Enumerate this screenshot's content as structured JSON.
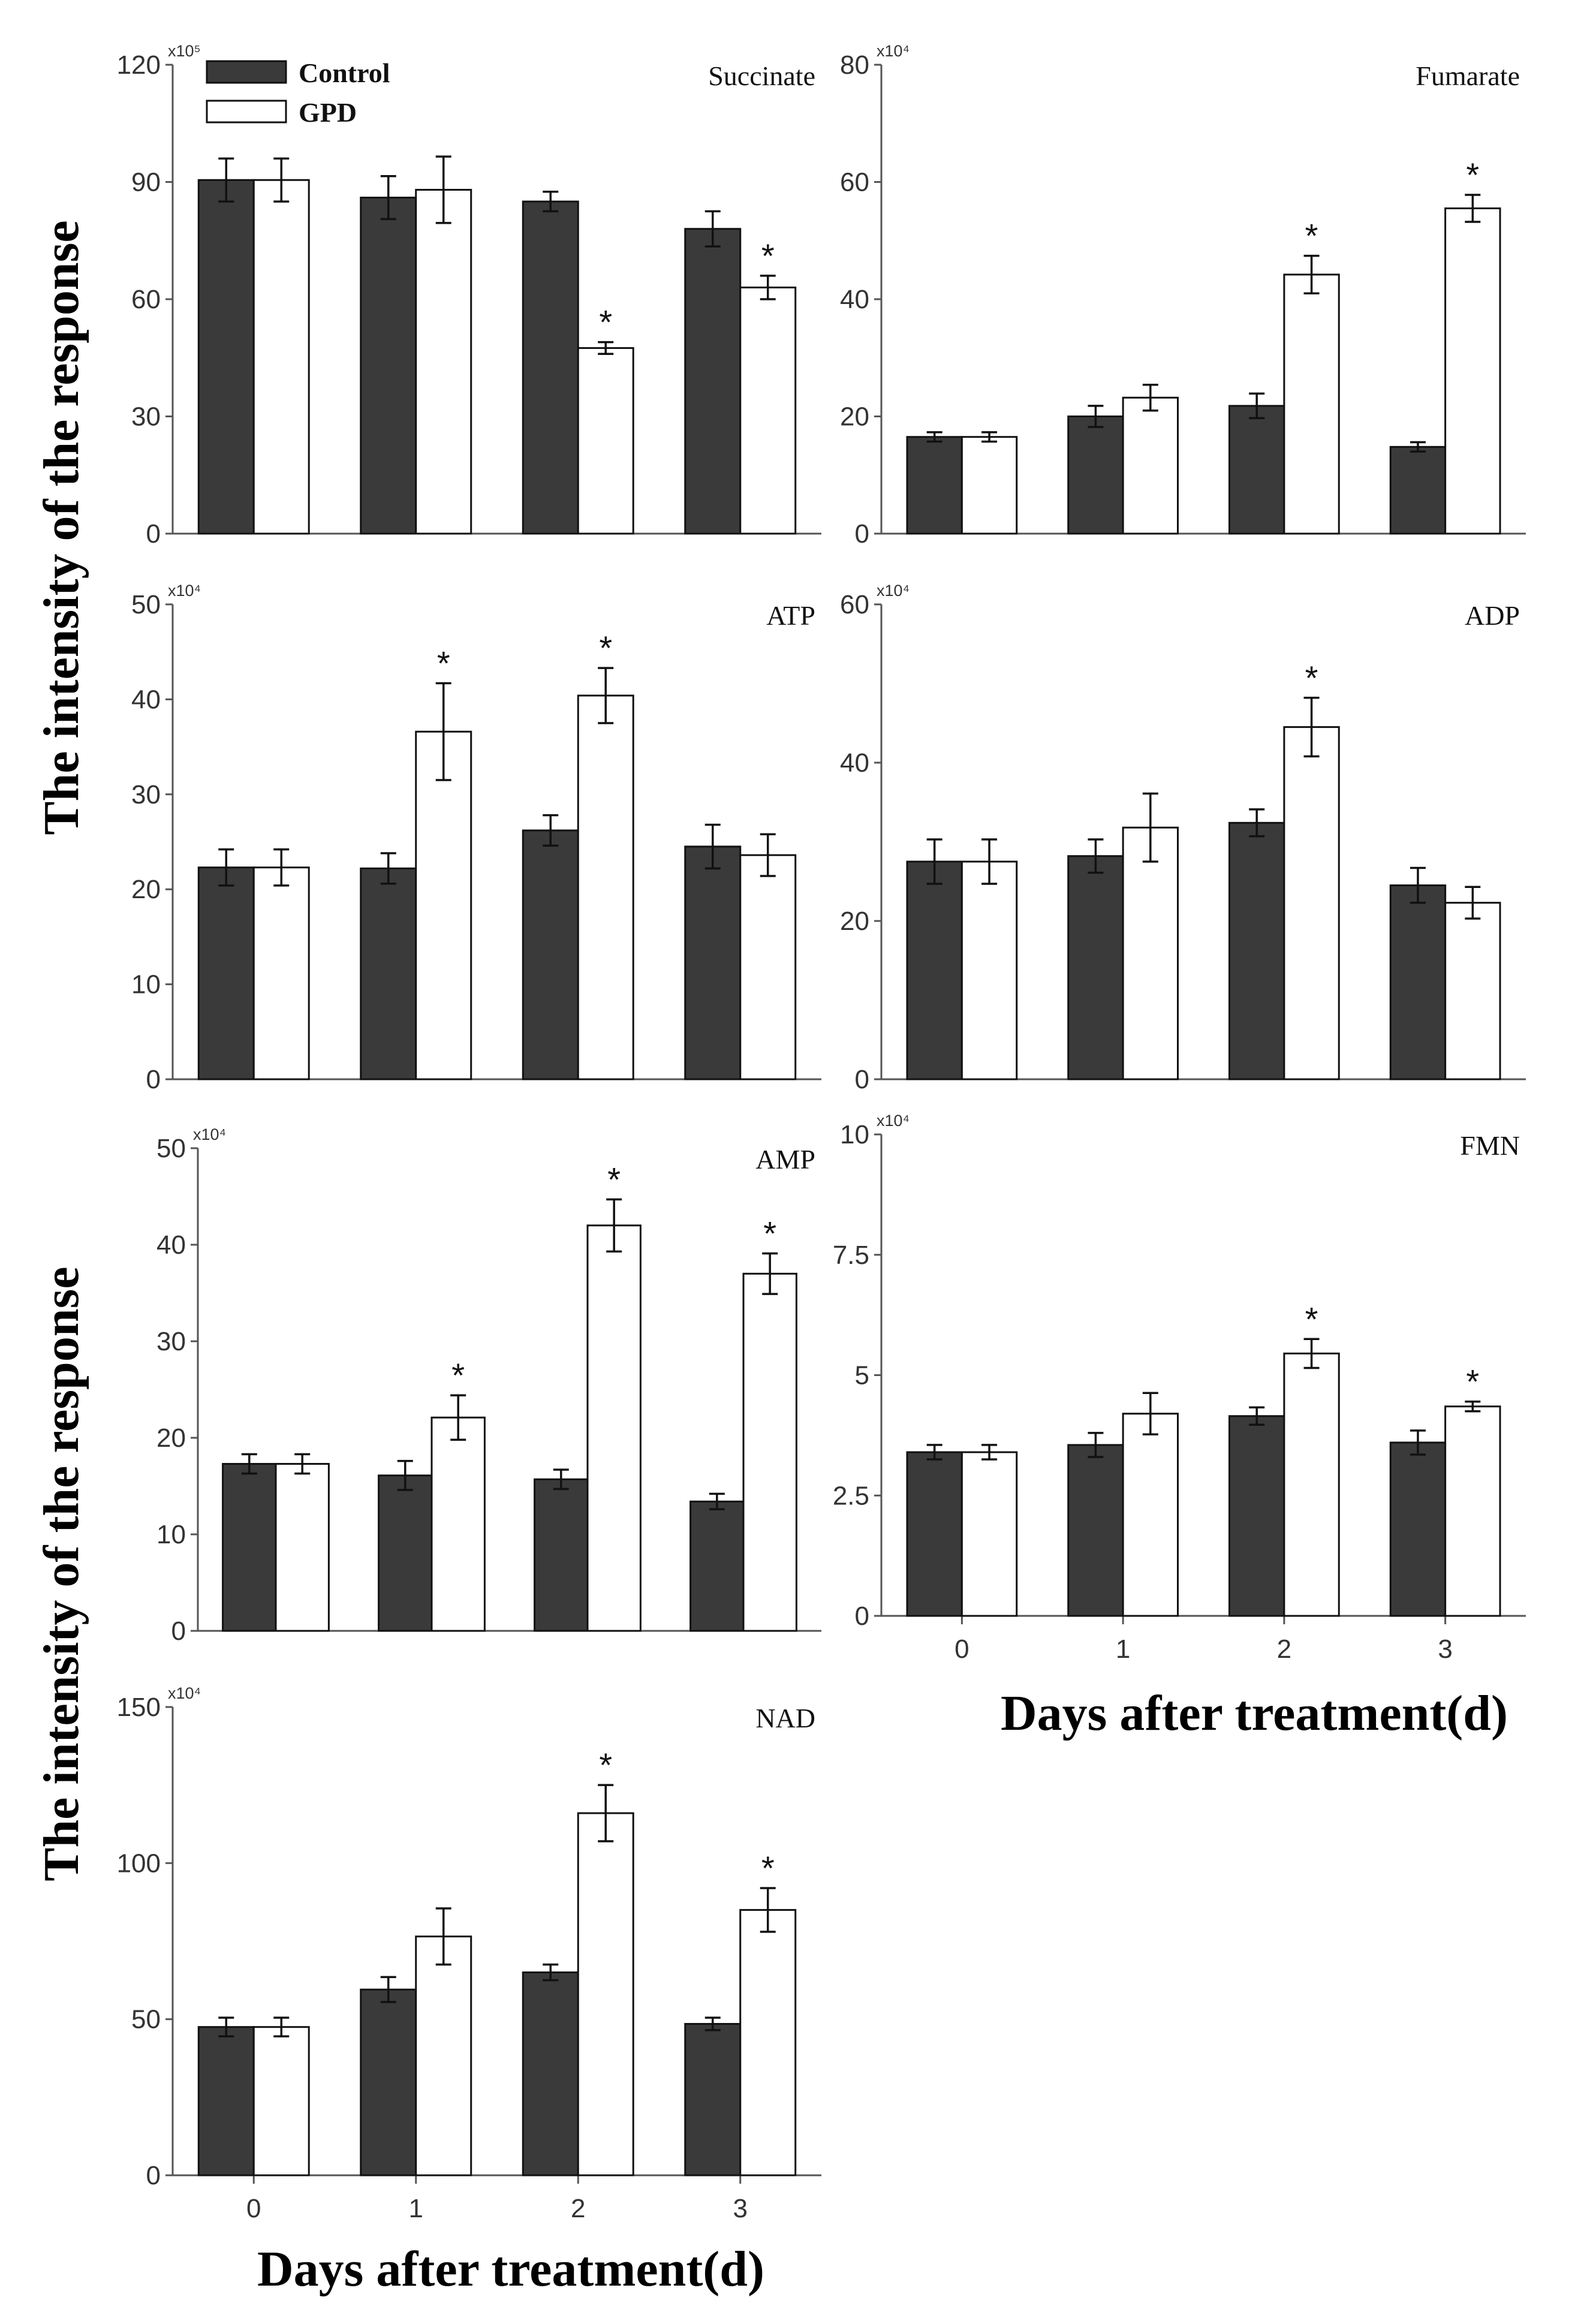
{
  "colors": {
    "control": "#3a3a3a",
    "gpd": "#ffffff",
    "axis": "#555555",
    "edge": "#111111"
  },
  "legend": {
    "placement": "top-left",
    "control_label": "Control",
    "gpd_label": "GPD"
  },
  "axis_titles": {
    "ylabel": "The intensity of the response",
    "xlabel": "Days after treatment(d)"
  },
  "chart_data": [
    {
      "type": "bar",
      "title": "Succinate",
      "exponent": "x10⁵",
      "xlabel": "Days after treatment(d)",
      "ylabel": "The intensity of the response",
      "categories": [
        "0",
        "1",
        "2",
        "3"
      ],
      "ylim": [
        0,
        120
      ],
      "yticks": [
        0,
        30,
        60,
        90,
        120
      ],
      "ytick_labels": [
        "0",
        "30",
        "60",
        "90",
        "120"
      ],
      "show_xticks": false,
      "series": [
        {
          "name": "Control",
          "values": [
            90.5,
            86,
            85,
            78
          ],
          "errors": [
            5.5,
            5.5,
            2.5,
            4.5
          ],
          "sig": [
            false,
            false,
            false,
            false
          ]
        },
        {
          "name": "GPD",
          "values": [
            90.5,
            88,
            47.5,
            63
          ],
          "errors": [
            5.5,
            8.5,
            1.5,
            3
          ],
          "sig": [
            false,
            false,
            true,
            true
          ]
        }
      ]
    },
    {
      "type": "bar",
      "title": "Fumarate",
      "exponent": "x10⁴",
      "xlabel": "Days after treatment(d)",
      "ylabel": "The intensity of the response",
      "categories": [
        "0",
        "1",
        "2",
        "3"
      ],
      "ylim": [
        0,
        80
      ],
      "yticks": [
        0,
        20,
        40,
        60,
        80
      ],
      "ytick_labels": [
        "0",
        "20",
        "40",
        "60",
        "80"
      ],
      "show_xticks": false,
      "series": [
        {
          "name": "Control",
          "values": [
            16.5,
            20,
            21.8,
            14.8
          ],
          "errors": [
            0.8,
            1.8,
            2.1,
            0.8
          ],
          "sig": [
            false,
            false,
            false,
            false
          ]
        },
        {
          "name": "GPD",
          "values": [
            16.5,
            23.2,
            44.2,
            55.5
          ],
          "errors": [
            0.8,
            2.2,
            3.2,
            2.3
          ],
          "sig": [
            false,
            false,
            true,
            true
          ]
        }
      ]
    },
    {
      "type": "bar",
      "title": "ATP",
      "exponent": "x10⁴",
      "xlabel": "Days after treatment(d)",
      "ylabel": "The intensity of the response",
      "categories": [
        "0",
        "1",
        "2",
        "3"
      ],
      "ylim": [
        0,
        50
      ],
      "yticks": [
        0,
        10,
        20,
        30,
        40,
        50
      ],
      "ytick_labels": [
        "0",
        "10",
        "20",
        "30",
        "40",
        "50"
      ],
      "show_xticks": false,
      "series": [
        {
          "name": "Control",
          "values": [
            22.3,
            22.2,
            26.2,
            24.5
          ],
          "errors": [
            1.9,
            1.6,
            1.6,
            2.3
          ],
          "sig": [
            false,
            false,
            false,
            false
          ]
        },
        {
          "name": "GPD",
          "values": [
            22.3,
            36.6,
            40.4,
            23.6
          ],
          "errors": [
            1.9,
            5.1,
            2.9,
            2.2
          ],
          "sig": [
            false,
            true,
            true,
            false
          ]
        }
      ]
    },
    {
      "type": "bar",
      "title": "ADP",
      "exponent": "x10⁴",
      "xlabel": "Days after treatment(d)",
      "ylabel": "The intensity of the response",
      "categories": [
        "0",
        "1",
        "2",
        "3"
      ],
      "ylim": [
        0,
        60
      ],
      "yticks": [
        0,
        20,
        40,
        60
      ],
      "ytick_labels": [
        "0",
        "20",
        "40",
        "60"
      ],
      "show_xticks": false,
      "series": [
        {
          "name": "Control",
          "values": [
            27.5,
            28.2,
            32.4,
            24.5
          ],
          "errors": [
            2.8,
            2.1,
            1.7,
            2.2
          ],
          "sig": [
            false,
            false,
            false,
            false
          ]
        },
        {
          "name": "GPD",
          "values": [
            27.5,
            31.8,
            44.5,
            22.3
          ],
          "errors": [
            2.8,
            4.3,
            3.7,
            2.0
          ],
          "sig": [
            false,
            false,
            true,
            false
          ]
        }
      ]
    },
    {
      "type": "bar",
      "title": "AMP",
      "exponent": "x10⁴",
      "xlabel": "Days after treatment(d)",
      "ylabel": "The intensity of the response",
      "categories": [
        "0",
        "1",
        "2",
        "3"
      ],
      "ylim": [
        0,
        50
      ],
      "yticks": [
        0,
        10,
        20,
        30,
        40,
        50
      ],
      "ytick_labels": [
        "0",
        "10",
        "20",
        "30",
        "40",
        "50"
      ],
      "show_xticks": false,
      "series": [
        {
          "name": "Control",
          "values": [
            17.3,
            16.1,
            15.7,
            13.4
          ],
          "errors": [
            1.0,
            1.5,
            1.0,
            0.8
          ],
          "sig": [
            false,
            false,
            false,
            false
          ]
        },
        {
          "name": "GPD",
          "values": [
            17.3,
            22.1,
            42.0,
            37.0
          ],
          "errors": [
            1.0,
            2.3,
            2.7,
            2.1
          ],
          "sig": [
            false,
            true,
            true,
            true
          ]
        }
      ]
    },
    {
      "type": "bar",
      "title": "FMN",
      "exponent": "x10⁴",
      "xlabel": "Days after treatment(d)",
      "ylabel": "The intensity of the response",
      "categories": [
        "0",
        "1",
        "2",
        "3"
      ],
      "ylim": [
        0,
        10
      ],
      "yticks": [
        0,
        2.5,
        5,
        7.5,
        10
      ],
      "ytick_labels": [
        "0",
        "2.5",
        "5",
        "7.5",
        "10"
      ],
      "show_xticks": true,
      "series": [
        {
          "name": "Control",
          "values": [
            3.4,
            3.55,
            4.15,
            3.6
          ],
          "errors": [
            0.15,
            0.25,
            0.18,
            0.25
          ],
          "sig": [
            false,
            false,
            false,
            false
          ]
        },
        {
          "name": "GPD",
          "values": [
            3.4,
            4.2,
            5.45,
            4.35
          ],
          "errors": [
            0.15,
            0.43,
            0.3,
            0.1
          ],
          "sig": [
            false,
            false,
            true,
            true
          ]
        }
      ]
    },
    {
      "type": "bar",
      "title": "NAD",
      "exponent": "x10⁴",
      "xlabel": "Days after treatment(d)",
      "ylabel": "The intensity of the response",
      "categories": [
        "0",
        "1",
        "2",
        "3"
      ],
      "ylim": [
        0,
        150
      ],
      "yticks": [
        0,
        50,
        100,
        150
      ],
      "ytick_labels": [
        "0",
        "50",
        "100",
        "150"
      ],
      "show_xticks": true,
      "series": [
        {
          "name": "Control",
          "values": [
            47.5,
            59.5,
            65,
            48.5
          ],
          "errors": [
            3,
            4,
            2.5,
            2
          ],
          "sig": [
            false,
            false,
            false,
            false
          ]
        },
        {
          "name": "GPD",
          "values": [
            47.5,
            76.5,
            116,
            85
          ],
          "errors": [
            3,
            9,
            9,
            7
          ],
          "sig": [
            false,
            false,
            true,
            true
          ]
        }
      ]
    }
  ]
}
